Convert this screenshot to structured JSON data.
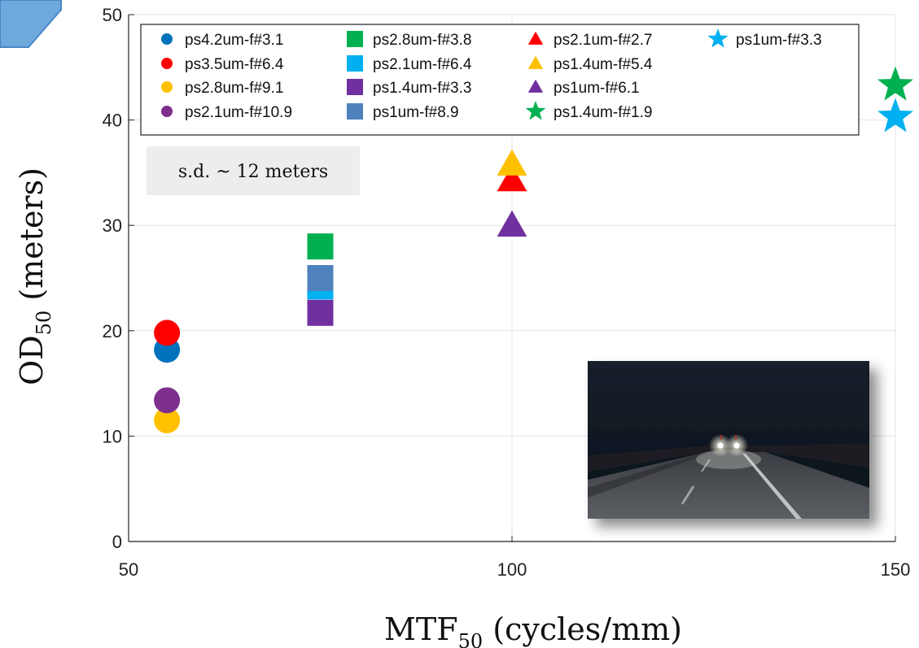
{
  "chart_data": {
    "type": "scatter",
    "title": "",
    "xlabel": {
      "main": "MTF",
      "sub": "50",
      "rest": " (cycles/mm)"
    },
    "ylabel": {
      "main": "OD",
      "sub": "50",
      "rest": " (meters)"
    },
    "xlim": [
      50,
      150
    ],
    "ylim": [
      0,
      50
    ],
    "xticks": [
      "50",
      "100",
      "150"
    ],
    "yticks": [
      "0",
      "10",
      "20",
      "30",
      "40",
      "50"
    ],
    "grid": true,
    "legend_position": "top",
    "annotation": "s.d. ~ 12 meters",
    "inset_image": "night-road-headlights",
    "series": [
      {
        "name": "ps4.2um-f#3.1",
        "marker": "circle",
        "color": "#0072BD",
        "x": 55,
        "y": 18.2
      },
      {
        "name": "ps3.5um-f#6.4",
        "marker": "circle",
        "color": "#FF0000",
        "x": 55,
        "y": 19.8
      },
      {
        "name": "ps2.8um-f#9.1",
        "marker": "circle",
        "color": "#FFC000",
        "x": 55,
        "y": 11.5
      },
      {
        "name": "ps2.1um-f#10.9",
        "marker": "circle",
        "color": "#7E2F8E",
        "x": 55,
        "y": 13.4
      },
      {
        "name": "ps2.8um-f#3.8",
        "marker": "square",
        "color": "#00B050",
        "x": 75,
        "y": 28.0
      },
      {
        "name": "ps2.1um-f#6.4",
        "marker": "square",
        "color": "#00B0F0",
        "x": 75,
        "y": 24.2
      },
      {
        "name": "ps1.4um-f#3.3",
        "marker": "square",
        "color": "#7030A0",
        "x": 75,
        "y": 21.7
      },
      {
        "name": "ps1um-f#8.9",
        "marker": "square",
        "color": "#4F81BD",
        "x": 75,
        "y": 25.0
      },
      {
        "name": "ps2.1um-f#2.7",
        "marker": "triangle",
        "color": "#FF0000",
        "x": 100,
        "y": 34.3
      },
      {
        "name": "ps1.4um-f#5.4",
        "marker": "triangle",
        "color": "#FFC000",
        "x": 100,
        "y": 35.8
      },
      {
        "name": "ps1um-f#6.1",
        "marker": "triangle",
        "color": "#7030A0",
        "x": 100,
        "y": 30.0
      },
      {
        "name": "ps1.4um-f#1.9",
        "marker": "star",
        "color": "#00B050",
        "x": 150,
        "y": 43.3
      },
      {
        "name": "ps1um-f#3.3",
        "marker": "star",
        "color": "#00B0F0",
        "x": 150,
        "y": 40.3
      }
    ]
  }
}
